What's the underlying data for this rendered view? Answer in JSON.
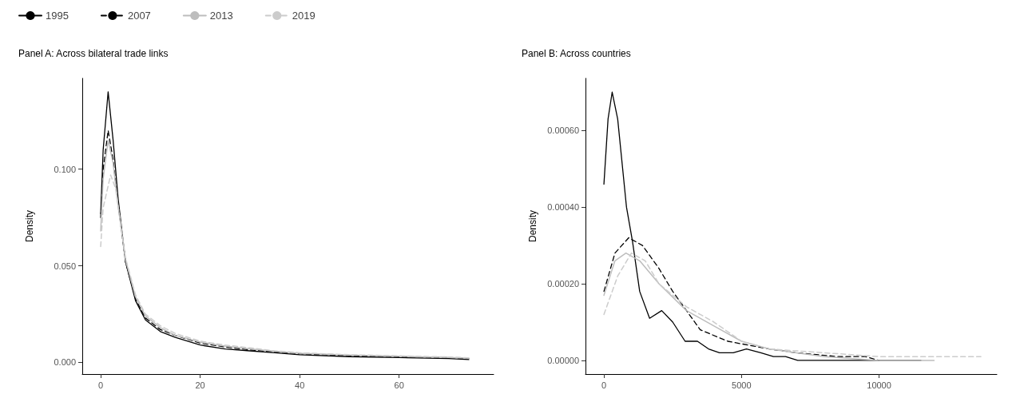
{
  "chart_data": [
    {
      "type": "line",
      "title": "Panel A: Across bilateral trade links",
      "ylabel": "Density",
      "legend": "top left",
      "grid": false,
      "marker": "none",
      "xlim": [
        -3.7,
        79
      ],
      "xticks": [
        0,
        20,
        40,
        60
      ],
      "ylim": [
        -0.006,
        0.147
      ],
      "yticks": [
        {
          "value": 0,
          "label": "0.000"
        },
        {
          "value": 0.05,
          "label": "0.050"
        },
        {
          "value": 0.1,
          "label": "0.100"
        }
      ],
      "series": [
        {
          "name": "1995",
          "color": "#000000",
          "line_style": "solid",
          "x": [
            0,
            0.5,
            1.5,
            2.5,
            3.5,
            5,
            7,
            9,
            12,
            15,
            20,
            25,
            30,
            35,
            40,
            50,
            60,
            70,
            74
          ],
          "values": [
            0.077,
            0.11,
            0.14,
            0.115,
            0.085,
            0.052,
            0.032,
            0.022,
            0.016,
            0.013,
            0.009,
            0.007,
            0.006,
            0.005,
            0.004,
            0.003,
            0.0025,
            0.002,
            0.0015
          ]
        },
        {
          "name": "2007",
          "color": "#000000",
          "line_style": "dashed",
          "x": [
            0,
            0.5,
            1.5,
            2.5,
            3.5,
            5,
            7,
            9,
            12,
            15,
            20,
            25,
            30,
            35,
            40,
            50,
            60,
            70,
            74
          ],
          "values": [
            0.075,
            0.1,
            0.12,
            0.105,
            0.082,
            0.052,
            0.033,
            0.023,
            0.017,
            0.014,
            0.01,
            0.008,
            0.0065,
            0.0055,
            0.0045,
            0.0035,
            0.003,
            0.0025,
            0.002
          ]
        },
        {
          "name": "2013",
          "color": "#bdbdbd",
          "line_style": "solid",
          "x": [
            0,
            0.5,
            1.5,
            2.5,
            3.5,
            5,
            7,
            9,
            12,
            15,
            20,
            25,
            30,
            35,
            40,
            50,
            60,
            70,
            74
          ],
          "values": [
            0.068,
            0.095,
            0.115,
            0.103,
            0.081,
            0.053,
            0.034,
            0.024,
            0.018,
            0.014,
            0.0105,
            0.0085,
            0.007,
            0.0058,
            0.0048,
            0.0038,
            0.0032,
            0.0026,
            0.0022
          ]
        },
        {
          "name": "2019",
          "color": "#cccccc",
          "line_style": "dashed",
          "x": [
            0,
            0.5,
            2,
            3,
            4,
            5,
            7,
            9,
            12,
            15,
            20,
            25,
            30,
            35,
            40,
            50,
            60,
            70,
            74
          ],
          "values": [
            0.06,
            0.08,
            0.097,
            0.09,
            0.072,
            0.054,
            0.035,
            0.025,
            0.019,
            0.015,
            0.011,
            0.009,
            0.0075,
            0.006,
            0.005,
            0.004,
            0.0034,
            0.0028,
            0.0024
          ]
        }
      ]
    },
    {
      "type": "line",
      "title": "Panel B: Across countries",
      "ylabel": "Density",
      "legend": false,
      "grid": false,
      "marker": "none",
      "xlim": [
        -670,
        14280
      ],
      "xticks": [
        0,
        5000,
        10000
      ],
      "ylim": [
        -3.55e-05,
        0.000736
      ],
      "yticks": [
        {
          "value": 0,
          "label": "0.00000"
        },
        {
          "value": 0.0002,
          "label": "0.00020"
        },
        {
          "value": 0.0004,
          "label": "0.00040"
        },
        {
          "value": 0.0006,
          "label": "0.00060"
        }
      ],
      "series": [
        {
          "color": "#000000",
          "line_style": "solid",
          "x": [
            0,
            150,
            300,
            500,
            820,
            1040,
            1300,
            1660,
            2100,
            2500,
            2950,
            3400,
            3800,
            4200,
            4700,
            5180,
            5700,
            6160,
            6600,
            7040,
            9000,
            11520
          ],
          "values": [
            0.00046,
            0.00063,
            0.0007,
            0.00063,
            0.0004,
            0.00031,
            0.00018,
            0.00011,
            0.00013,
            0.0001,
            5e-05,
            5e-05,
            3e-05,
            2e-05,
            2e-05,
            3e-05,
            2e-05,
            1e-05,
            1e-05,
            0,
            0,
            0
          ]
        },
        {
          "color": "#000000",
          "line_style": "dashed",
          "x": [
            0,
            400,
            900,
            1400,
            2000,
            2500,
            3000,
            3500,
            4500,
            6000,
            7000,
            8500,
            9500,
            10000
          ],
          "values": [
            0.00018,
            0.00028,
            0.00032,
            0.0003,
            0.00024,
            0.00018,
            0.00013,
            8e-05,
            5e-05,
            3e-05,
            2e-05,
            1e-05,
            1e-05,
            0
          ]
        },
        {
          "color": "#bdbdbd",
          "line_style": "solid",
          "x": [
            0,
            400,
            800,
            1300,
            2000,
            3000,
            4000,
            5000,
            6000,
            7000,
            8000,
            10000,
            12000
          ],
          "values": [
            0.00017,
            0.00026,
            0.00028,
            0.00026,
            0.0002,
            0.00013,
            9e-05,
            5e-05,
            3e-05,
            2e-05,
            1e-05,
            0,
            0
          ]
        },
        {
          "color": "#cccccc",
          "line_style": "dashed",
          "x": [
            0,
            500,
            1000,
            1500,
            2000,
            3000,
            4000,
            5000,
            6000,
            8000,
            10000,
            12000,
            13700
          ],
          "values": [
            0.00012,
            0.00022,
            0.00028,
            0.00026,
            0.0002,
            0.00014,
            0.0001,
            5e-05,
            3e-05,
            2e-05,
            1e-05,
            1e-05,
            1e-05
          ]
        }
      ]
    }
  ]
}
